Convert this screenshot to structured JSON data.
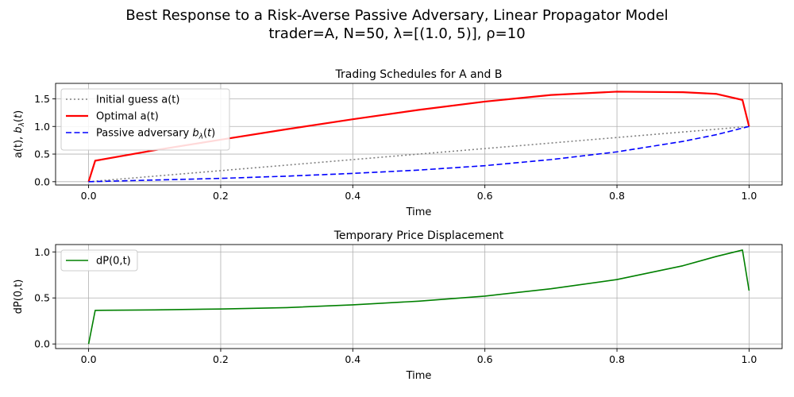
{
  "figure": {
    "suptitle_line1": "Best Response to a Risk-Averse Passive Adversary, Linear Propagator Model",
    "suptitle_line2": "trader=A, N=50, λ=[(1.0, 5)], ρ=10"
  },
  "chart_data": [
    {
      "type": "line",
      "title": "Trading Schedules for A and B",
      "xlabel": "Time",
      "ylabel": "a(t), b_λ(t)",
      "xlim": [
        -0.05,
        1.05
      ],
      "ylim": [
        -0.06,
        1.78
      ],
      "xticks": [
        0.0,
        0.2,
        0.4,
        0.6,
        0.8,
        1.0
      ],
      "xtick_labels": [
        "0.0",
        "0.2",
        "0.4",
        "0.6",
        "0.8",
        "1.0"
      ],
      "yticks": [
        0.0,
        0.5,
        1.0,
        1.5
      ],
      "ytick_labels": [
        "0.0",
        "0.5",
        "1.0",
        "1.5"
      ],
      "grid": true,
      "legend_position": "upper-left",
      "series": [
        {
          "name": "Initial guess a(t)",
          "color": "#808080",
          "style": "dotted",
          "x": [
            0.0,
            1.0
          ],
          "y": [
            0.0,
            1.0
          ]
        },
        {
          "name": "Optimal a(t)",
          "color": "#ff0000",
          "style": "solid",
          "x": [
            0.0,
            0.01,
            0.1,
            0.2,
            0.3,
            0.4,
            0.5,
            0.6,
            0.7,
            0.8,
            0.9,
            0.95,
            0.99,
            1.0
          ],
          "y": [
            0.0,
            0.38,
            0.57,
            0.76,
            0.95,
            1.13,
            1.3,
            1.45,
            1.57,
            1.63,
            1.62,
            1.59,
            1.48,
            1.0
          ]
        },
        {
          "name": "Passive adversary b_λ(t)",
          "color": "#0000ff",
          "style": "dashed",
          "x": [
            0.0,
            0.1,
            0.2,
            0.3,
            0.4,
            0.5,
            0.6,
            0.7,
            0.8,
            0.9,
            0.95,
            1.0
          ],
          "y": [
            0.0,
            0.03,
            0.06,
            0.1,
            0.15,
            0.21,
            0.29,
            0.4,
            0.54,
            0.73,
            0.85,
            1.0
          ]
        }
      ]
    },
    {
      "type": "line",
      "title": "Temporary Price Displacement",
      "xlabel": "Time",
      "ylabel": "dP(0,t)",
      "xlim": [
        -0.05,
        1.05
      ],
      "ylim": [
        -0.05,
        1.08
      ],
      "xticks": [
        0.0,
        0.2,
        0.4,
        0.6,
        0.8,
        1.0
      ],
      "xtick_labels": [
        "0.0",
        "0.2",
        "0.4",
        "0.6",
        "0.8",
        "1.0"
      ],
      "yticks": [
        0.0,
        0.5,
        1.0
      ],
      "ytick_labels": [
        "0.0",
        "0.5",
        "1.0"
      ],
      "grid": true,
      "legend_position": "upper-left",
      "series": [
        {
          "name": "dP(0,t)",
          "color": "#008000",
          "style": "solid",
          "x": [
            0.0,
            0.01,
            0.1,
            0.2,
            0.3,
            0.4,
            0.5,
            0.6,
            0.7,
            0.8,
            0.9,
            0.95,
            0.99,
            1.0
          ],
          "y": [
            0.0,
            0.365,
            0.37,
            0.38,
            0.395,
            0.425,
            0.465,
            0.52,
            0.6,
            0.7,
            0.85,
            0.95,
            1.02,
            0.58
          ]
        }
      ]
    }
  ]
}
